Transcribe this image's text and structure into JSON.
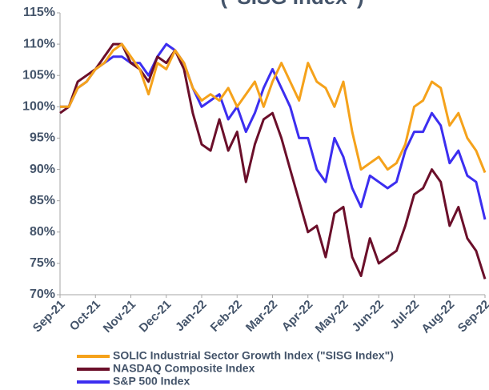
{
  "chart_data": {
    "type": "line",
    "title": "(\"SISG Index\")",
    "x": [
      0,
      0.25,
      0.5,
      0.75,
      1,
      1.25,
      1.5,
      1.75,
      2,
      2.25,
      2.5,
      2.75,
      3,
      3.25,
      3.5,
      3.75,
      4,
      4.25,
      4.5,
      4.75,
      5,
      5.25,
      5.5,
      5.75,
      6,
      6.25,
      6.5,
      6.75,
      7,
      7.25,
      7.5,
      7.75,
      8,
      8.25,
      8.5,
      8.75,
      9,
      9.25,
      9.5,
      9.75,
      10,
      10.25,
      10.5,
      10.75,
      11,
      11.25,
      11.5,
      11.75,
      12
    ],
    "series": [
      {
        "name": "SOLIC Industrial Sector Growth Index (\"SISG Index\")",
        "color": "#f5a21b",
        "values": [
          100,
          100,
          103,
          104,
          106,
          107,
          109,
          110,
          108,
          106,
          102,
          107,
          106,
          109,
          107,
          103,
          101,
          102,
          101,
          103,
          100,
          102,
          104,
          100,
          104,
          107,
          104,
          101,
          107,
          104,
          103,
          100,
          104,
          96,
          90,
          91,
          92,
          90,
          91,
          94,
          100,
          101,
          104,
          103,
          97,
          99,
          95,
          93,
          89.5
        ]
      },
      {
        "name": "NASDAQ Composite Index",
        "color": "#6b0f2a",
        "values": [
          99,
          100,
          104,
          105,
          106,
          108,
          110,
          110,
          107,
          106,
          104,
          108,
          107,
          109,
          106,
          99,
          94,
          93,
          98,
          93,
          96,
          88,
          94,
          98,
          99,
          95,
          90,
          85,
          80,
          81,
          76,
          83,
          84,
          76,
          73,
          79,
          75,
          76,
          77,
          81,
          86,
          87,
          90,
          88,
          81,
          84,
          79,
          77,
          72.5
        ]
      },
      {
        "name": "S&P 500 Index",
        "color": "#3c2ef0",
        "values": [
          100,
          100,
          103,
          104,
          106,
          107,
          108,
          108,
          107,
          107,
          105,
          108,
          110,
          109,
          107,
          103,
          100,
          101,
          102,
          98,
          100,
          96,
          99,
          103,
          106,
          103,
          100,
          95,
          95,
          90,
          88,
          95,
          92,
          87,
          84,
          89,
          88,
          87,
          88,
          93,
          96,
          96,
          99,
          97,
          91,
          93,
          89,
          88,
          82
        ]
      }
    ],
    "xlim": [
      0,
      12
    ],
    "xticks": [
      {
        "value": 0,
        "label": "Sep-21"
      },
      {
        "value": 1,
        "label": "Oct-21"
      },
      {
        "value": 2,
        "label": "Nov-21"
      },
      {
        "value": 3,
        "label": "Dec-21"
      },
      {
        "value": 4,
        "label": "Jan-22"
      },
      {
        "value": 5,
        "label": "Feb-22"
      },
      {
        "value": 6,
        "label": "Mar-22"
      },
      {
        "value": 7,
        "label": "Apr-22"
      },
      {
        "value": 8,
        "label": "May-22"
      },
      {
        "value": 9,
        "label": "Jun-22"
      },
      {
        "value": 10,
        "label": "Jul-22"
      },
      {
        "value": 11,
        "label": "Aug-22"
      },
      {
        "value": 12,
        "label": "Sep-22"
      }
    ],
    "ylim": [
      70,
      115
    ],
    "yticks": [
      {
        "value": 70,
        "label": "70%"
      },
      {
        "value": 75,
        "label": "75%"
      },
      {
        "value": 80,
        "label": "80%"
      },
      {
        "value": 85,
        "label": "85%"
      },
      {
        "value": 90,
        "label": "90%"
      },
      {
        "value": 95,
        "label": "95%"
      },
      {
        "value": 100,
        "label": "100%"
      },
      {
        "value": 105,
        "label": "105%"
      },
      {
        "value": 110,
        "label": "110%"
      },
      {
        "value": 115,
        "label": "115%"
      }
    ],
    "grid": false,
    "legend": "bottom"
  }
}
